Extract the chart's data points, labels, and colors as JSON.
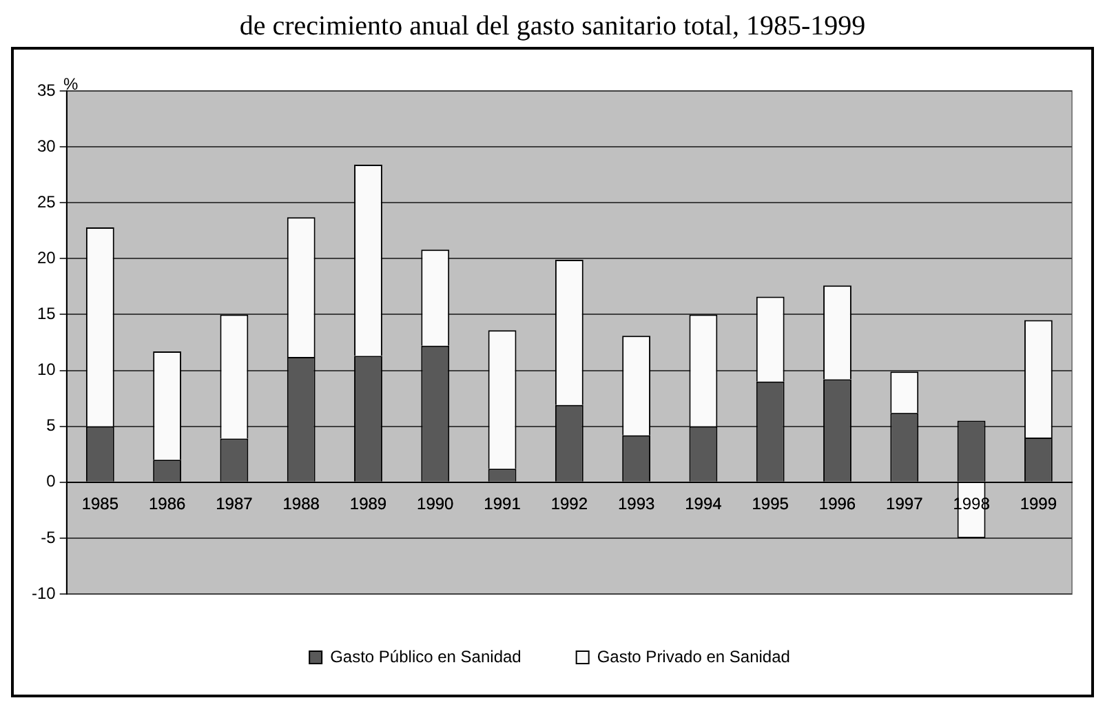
{
  "chart_data": {
    "type": "bar",
    "title": "de crecimiento anual del gasto sanitario total, 1985-1999",
    "ylabel": "%",
    "stacked": true,
    "categories": [
      "1985",
      "1986",
      "1987",
      "1988",
      "1989",
      "1990",
      "1991",
      "1992",
      "1993",
      "1994",
      "1995",
      "1996",
      "1997",
      "1998",
      "1999"
    ],
    "series": [
      {
        "name": "Gasto Público en Sanidad",
        "color": "#595959",
        "values": [
          5,
          2,
          3.9,
          11.2,
          11.3,
          12.2,
          1.2,
          6.9,
          4.2,
          5,
          9,
          9.2,
          6.2,
          5.5,
          4
        ]
      },
      {
        "name": "Gasto Privado en Sanidad",
        "color": "#fafafa",
        "values": [
          17.8,
          9.7,
          11.1,
          12.5,
          17.1,
          8.6,
          12.4,
          13,
          8.9,
          10,
          7.6,
          8.4,
          3.7,
          -5,
          10.5
        ]
      }
    ],
    "ylim": [
      -10,
      35
    ],
    "yticks": [
      -10,
      -5,
      0,
      5,
      10,
      15,
      20,
      25,
      30,
      35
    ],
    "grid": "y",
    "legend": "bottom"
  }
}
